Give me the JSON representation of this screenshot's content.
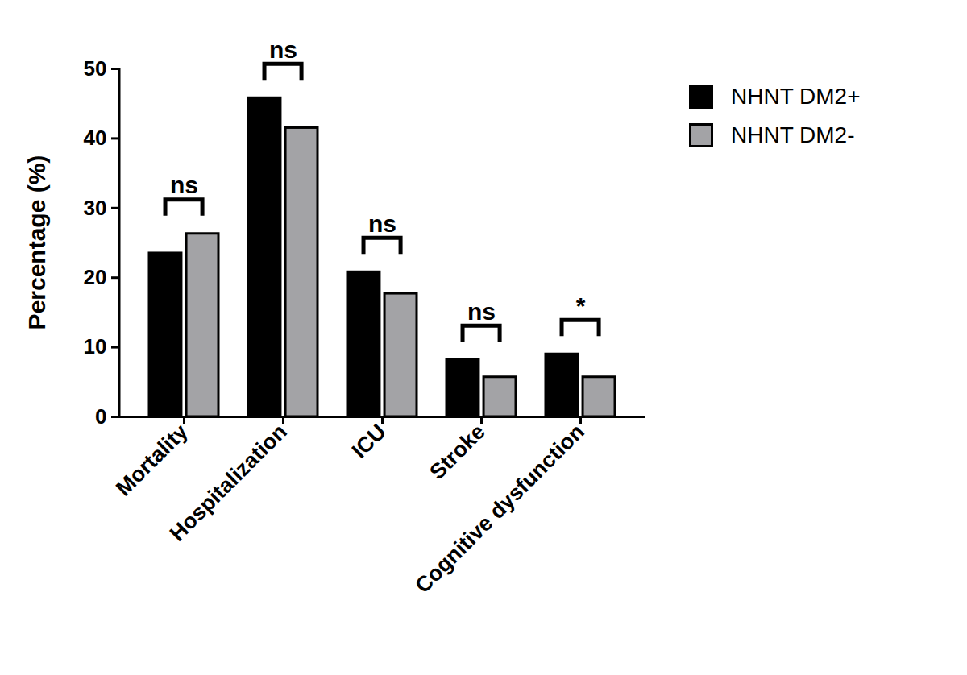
{
  "chart_data": {
    "type": "bar",
    "categories": [
      "Mortality",
      "Hospitalization",
      "ICU",
      "Stroke",
      "Cognitive dysfunction"
    ],
    "series": [
      {
        "name": "NHNT DM2+",
        "color": "#000000",
        "values": [
          23.5,
          45.8,
          20.8,
          8.2,
          9.0
        ]
      },
      {
        "name": "NHNT DM2-",
        "color": "#a3a3a6",
        "values": [
          26.3,
          41.5,
          17.7,
          5.7,
          5.7
        ]
      }
    ],
    "y_label": "Percentage (%)",
    "ylim": [
      0,
      50
    ],
    "yticks": [
      0,
      10,
      20,
      30,
      40,
      50
    ],
    "grid": false,
    "legend": "upper right",
    "annotations": [
      {
        "category": "Mortality",
        "text": "ns"
      },
      {
        "category": "Hospitalization",
        "text": "ns"
      },
      {
        "category": "ICU",
        "text": "ns"
      },
      {
        "category": "Stroke",
        "text": "ns"
      },
      {
        "category": "Cognitive dysfunction",
        "text": "*"
      }
    ]
  }
}
